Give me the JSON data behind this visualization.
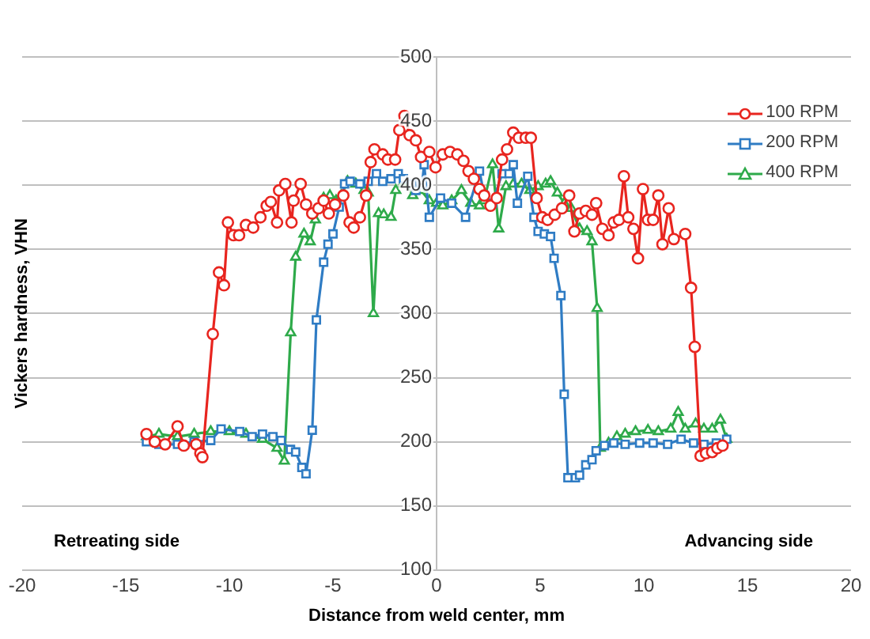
{
  "chart_data": {
    "type": "line",
    "xlabel": "Distance from weld center, mm",
    "ylabel": "Vickers hardness, VHN",
    "xlim": [
      -20,
      20
    ],
    "xticks": [
      -20,
      -15,
      -10,
      -5,
      0,
      5,
      10,
      15,
      20
    ],
    "ylim": [
      100,
      500
    ],
    "yticks": [
      100,
      150,
      200,
      250,
      300,
      350,
      400,
      450,
      500
    ],
    "grid": "y",
    "legend": "top right",
    "line_style": "solid",
    "annotations": [
      "Retreating side",
      "Advancing side"
    ],
    "series": [
      {
        "name": "100 RPM",
        "color": "#e8251f",
        "marker": "circle",
        "x": [
          -14.0,
          -13.6,
          -13.1,
          -12.5,
          -12.2,
          -11.6,
          -11.4,
          -11.3,
          -10.8,
          -10.5,
          -10.26,
          -10.07,
          -9.8,
          -9.53,
          -9.2,
          -8.85,
          -8.5,
          -8.2,
          -8.0,
          -7.7,
          -7.6,
          -7.3,
          -7.0,
          -6.9,
          -6.56,
          -6.3,
          -6.0,
          -5.7,
          -5.45,
          -5.2,
          -4.9,
          -4.5,
          -4.2,
          -4.0,
          -3.7,
          -3.4,
          -3.18,
          -3.0,
          -2.6,
          -2.35,
          -2.0,
          -1.8,
          -1.55,
          -1.3,
          -1.0,
          -0.75,
          -0.35,
          -0.05,
          0.3,
          0.65,
          1.0,
          1.3,
          1.54,
          1.8,
          2.07,
          2.3,
          2.6,
          2.9,
          3.16,
          3.4,
          3.7,
          3.97,
          4.3,
          4.55,
          4.83,
          5.1,
          5.36,
          5.7,
          6.05,
          6.4,
          6.65,
          6.9,
          7.2,
          7.5,
          7.7,
          8.0,
          8.3,
          8.55,
          8.8,
          9.04,
          9.25,
          9.5,
          9.72,
          9.96,
          10.2,
          10.45,
          10.7,
          10.9,
          11.2,
          11.45,
          12.0,
          12.28,
          12.46,
          12.74,
          13.0,
          13.3,
          13.55,
          13.8
        ],
        "values": [
          206,
          200,
          198,
          212,
          197,
          198,
          191,
          188,
          284,
          332,
          322,
          371,
          361,
          361,
          369,
          367,
          375,
          384,
          387,
          371,
          396,
          401,
          371,
          388,
          401,
          385,
          378,
          382,
          388,
          378,
          385,
          392,
          371,
          367,
          375,
          392,
          418,
          428,
          424,
          420,
          420,
          443,
          454,
          439,
          435,
          422,
          426,
          414,
          424,
          426,
          424,
          419,
          411,
          405,
          397,
          392,
          384,
          390,
          420,
          428,
          441,
          437,
          437,
          437,
          390,
          375,
          373,
          377,
          382,
          392,
          364,
          378,
          380,
          377,
          386,
          366,
          361,
          371,
          373,
          407,
          375,
          366,
          343,
          397,
          373,
          373,
          392,
          354,
          382,
          358,
          362,
          320,
          274,
          189,
          191,
          192,
          195,
          197
        ]
      },
      {
        "name": "200 RPM",
        "color": "#2f7cc4",
        "marker": "square",
        "x": [
          -14.0,
          -13.4,
          -12.5,
          -11.7,
          -10.9,
          -10.4,
          -9.5,
          -8.9,
          -8.4,
          -7.9,
          -7.5,
          -7.05,
          -6.8,
          -6.5,
          -6.3,
          -6.0,
          -5.8,
          -5.45,
          -5.24,
          -5.0,
          -4.7,
          -4.44,
          -4.17,
          -3.7,
          -3.3,
          -2.9,
          -2.6,
          -2.2,
          -1.85,
          -1.6,
          -1.2,
          -1.0,
          -0.7,
          -0.6,
          -0.35,
          0.19,
          0.73,
          1.4,
          2.07,
          2.3,
          2.7,
          3.16,
          3.5,
          3.7,
          3.9,
          4.4,
          4.7,
          4.9,
          5.2,
          5.5,
          5.67,
          6.0,
          6.16,
          6.34,
          6.7,
          6.9,
          7.2,
          7.5,
          7.7,
          8.1,
          8.55,
          9.1,
          9.8,
          10.45,
          11.15,
          11.8,
          12.4,
          12.9,
          13.5,
          14.0
        ],
        "values": [
          200,
          198,
          198,
          200,
          201,
          210,
          208,
          204,
          206,
          204,
          201,
          194,
          192,
          180,
          175,
          209,
          295,
          340,
          354,
          362,
          383,
          401,
          403,
          401,
          403,
          409,
          403,
          405,
          409,
          405,
          401,
          396,
          401,
          416,
          375,
          390,
          386,
          375,
          411,
          392,
          386,
          409,
          409,
          416,
          386,
          407,
          375,
          364,
          362,
          360,
          343,
          314,
          237,
          172,
          172,
          174,
          182,
          186,
          193,
          197,
          199,
          198,
          199,
          199,
          198,
          202,
          199,
          198,
          199,
          202
        ]
      },
      {
        "name": "400 RPM",
        "color": "#2eaa4a",
        "marker": "triangle",
        "x": [
          -14.0,
          -13.4,
          -12.5,
          -11.7,
          -10.9,
          -10.0,
          -9.2,
          -8.4,
          -7.7,
          -7.35,
          -7.04,
          -6.8,
          -6.4,
          -6.1,
          -5.85,
          -5.45,
          -5.15,
          -4.85,
          -4.6,
          -4.3,
          -3.9,
          -3.5,
          -3.3,
          -3.05,
          -2.8,
          -2.55,
          -2.2,
          -1.97,
          -1.55,
          -1.15,
          -0.75,
          -0.35,
          0.0,
          0.3,
          0.73,
          1.2,
          1.65,
          2.07,
          2.3,
          2.7,
          3.0,
          3.35,
          3.7,
          4.1,
          4.5,
          4.9,
          5.26,
          5.5,
          5.83,
          6.16,
          6.5,
          6.9,
          7.26,
          7.5,
          7.75,
          7.9,
          8.3,
          8.7,
          9.1,
          9.6,
          10.2,
          10.7,
          11.3,
          11.66,
          12.0,
          12.5,
          12.9,
          13.3,
          13.7,
          14.0
        ],
        "values": [
          204,
          206,
          204,
          206,
          208,
          208,
          206,
          202,
          195,
          185,
          285,
          344,
          362,
          356,
          373,
          390,
          392,
          388,
          392,
          403,
          401,
          396,
          394,
          300,
          378,
          377,
          375,
          396,
          403,
          392,
          396,
          388,
          386,
          384,
          388,
          396,
          386,
          384,
          388,
          416,
          366,
          399,
          401,
          401,
          396,
          399,
          401,
          403,
          394,
          386,
          382,
          366,
          364,
          356,
          304,
          195,
          199,
          204,
          206,
          208,
          209,
          208,
          210,
          223,
          210,
          214,
          210,
          210,
          217,
          202
        ]
      }
    ]
  }
}
